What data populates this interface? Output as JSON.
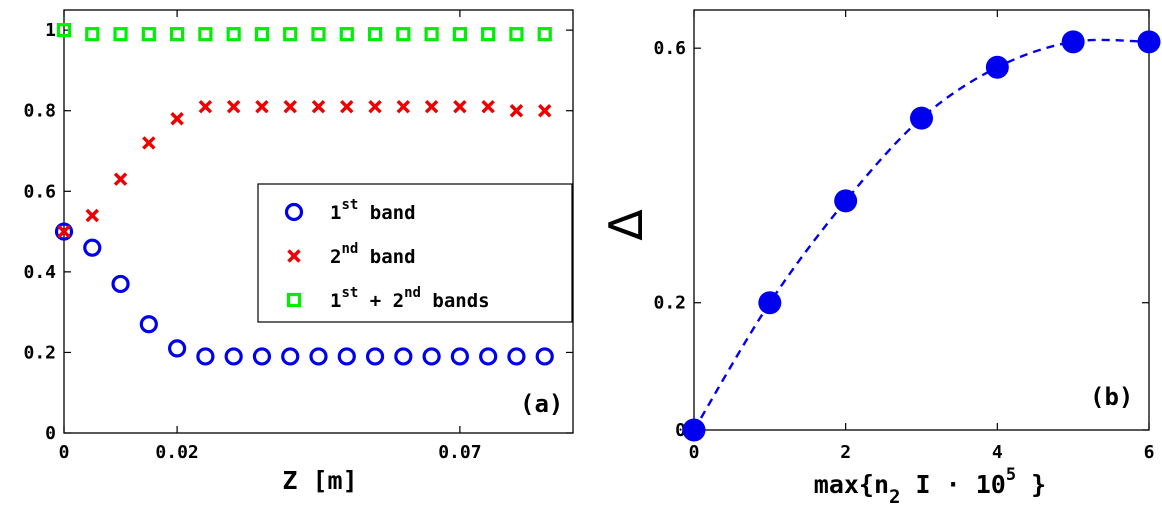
{
  "chart_data": [
    {
      "type": "scatter",
      "panel_label": "(a)",
      "xlabel": "Z  [m]",
      "ylabel": "",
      "xlim": [
        0,
        0.09
      ],
      "ylim": [
        0,
        1.05
      ],
      "xticks": [
        0,
        0.02,
        0.07
      ],
      "xtick_labels": [
        "0",
        "0.02",
        "0.07"
      ],
      "yticks": [
        0,
        0.2,
        0.4,
        0.6,
        0.8,
        1.0
      ],
      "ytick_labels": [
        "0",
        "0.2",
        "0.4",
        "0.6",
        "0.8",
        "1"
      ],
      "grid": false,
      "legend_position": "center-right",
      "x": [
        0,
        0.005,
        0.01,
        0.015,
        0.02,
        0.025,
        0.03,
        0.035,
        0.04,
        0.045,
        0.05,
        0.055,
        0.06,
        0.065,
        0.07,
        0.075,
        0.08,
        0.085
      ],
      "series": [
        {
          "name_base": "1",
          "name_sup": "st",
          "name_rest": " band",
          "marker": "circle",
          "color": "#0000ee",
          "values": [
            0.5,
            0.46,
            0.37,
            0.27,
            0.21,
            0.19,
            0.19,
            0.19,
            0.19,
            0.19,
            0.19,
            0.19,
            0.19,
            0.19,
            0.19,
            0.19,
            0.19,
            0.19
          ]
        },
        {
          "name_base": "2",
          "name_sup": "nd",
          "name_rest": " band",
          "marker": "x",
          "color": "#ee0000",
          "values": [
            0.5,
            0.54,
            0.63,
            0.72,
            0.78,
            0.81,
            0.81,
            0.81,
            0.81,
            0.81,
            0.81,
            0.81,
            0.81,
            0.81,
            0.81,
            0.81,
            0.8,
            0.8
          ]
        },
        {
          "name_base": "1",
          "name_sup": "st",
          "name_rest": " + 2",
          "name_sup2": "nd",
          "name_rest2": " bands",
          "marker": "square",
          "color": "#00ee00",
          "values": [
            1.0,
            0.99,
            0.99,
            0.99,
            0.99,
            0.99,
            0.99,
            0.99,
            0.99,
            0.99,
            0.99,
            0.99,
            0.99,
            0.99,
            0.99,
            0.99,
            0.99,
            0.99
          ]
        }
      ]
    },
    {
      "type": "line",
      "panel_label": "(b)",
      "xlabel_pre": "max{n",
      "xlabel_sub": "2",
      "xlabel_mid": " I · 10",
      "xlabel_sup": "5",
      "xlabel_post": " }",
      "ylabel": "Δ",
      "xlim": [
        0,
        6
      ],
      "ylim": [
        0,
        0.66
      ],
      "xticks": [
        0,
        2,
        4,
        6
      ],
      "xtick_labels": [
        "0",
        "2",
        "4",
        "6"
      ],
      "yticks": [
        0,
        0.2,
        0.6
      ],
      "ytick_labels": [
        "0",
        "0.2",
        "0.6"
      ],
      "grid": false,
      "x": [
        0,
        1,
        2,
        3,
        4,
        5,
        6
      ],
      "values": [
        0.0,
        0.2,
        0.36,
        0.49,
        0.57,
        0.61,
        0.61
      ],
      "color": "#0000ee",
      "line_style": "dashed",
      "marker": "filled-circle"
    }
  ]
}
